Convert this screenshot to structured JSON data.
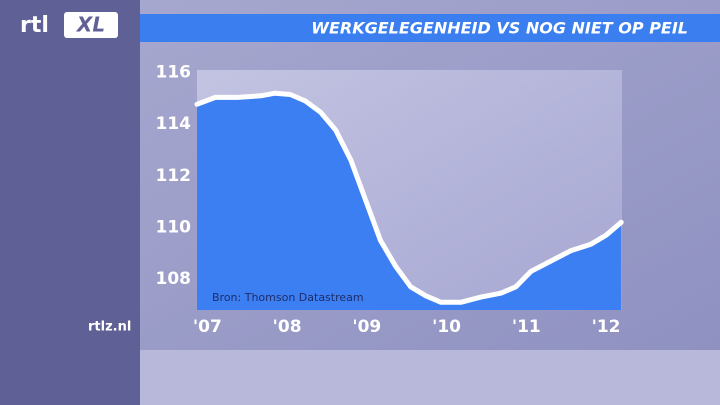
{
  "branding": {
    "logo": "rtl",
    "logo_suffix": "XL",
    "url": "rtlz.nl"
  },
  "chart_data": {
    "type": "area",
    "title": "WERKGELEGENHEID VS NOG NIET OP PEIL",
    "annotation": "Bron: Thomson Datastream",
    "x": [
      2006.87,
      2007.1,
      2007.38,
      2007.67,
      2007.85,
      2008.04,
      2008.23,
      2008.42,
      2008.61,
      2008.8,
      2008.98,
      2009.17,
      2009.36,
      2009.55,
      2009.74,
      2009.93,
      2010.18,
      2010.43,
      2010.68,
      2010.87,
      2011.06,
      2011.31,
      2011.56,
      2011.81,
      2012.0,
      2012.19
    ],
    "values": [
      114.77,
      115.04,
      115.04,
      115.1,
      115.2,
      115.15,
      114.9,
      114.46,
      113.77,
      112.6,
      111.1,
      109.5,
      108.5,
      107.7,
      107.35,
      107.1,
      107.1,
      107.3,
      107.45,
      107.7,
      108.3,
      108.7,
      109.1,
      109.35,
      109.7,
      110.2
    ],
    "fill_color": "#3b7ff2",
    "line_color": "#ffffff",
    "xlim": [
      2006.87,
      2012.2
    ],
    "xticks": [
      {
        "value": 2007,
        "label": "'07"
      },
      {
        "value": 2008,
        "label": "'08"
      },
      {
        "value": 2009,
        "label": "'09"
      },
      {
        "value": 2010,
        "label": "'10"
      },
      {
        "value": 2011,
        "label": "'11"
      },
      {
        "value": 2012,
        "label": "'12"
      }
    ],
    "ylim": [
      106.8,
      116.1
    ],
    "yticks": [
      108,
      110,
      112,
      114,
      116
    ],
    "grid": false
  }
}
